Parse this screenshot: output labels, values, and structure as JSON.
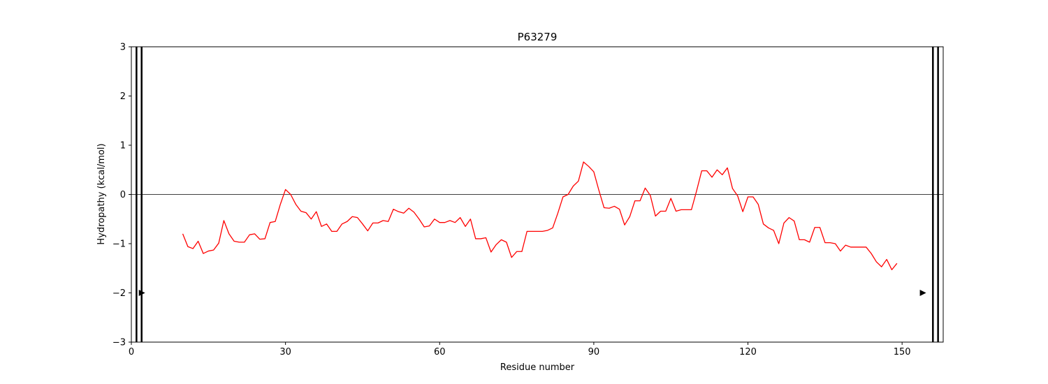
{
  "chart_data": {
    "type": "line",
    "title": "P63279",
    "xlabel": "Residue number",
    "ylabel": "Hydropathy (kcal/mol)",
    "xlim": [
      0,
      158
    ],
    "ylim": [
      -3,
      3
    ],
    "xticks": [
      0,
      30,
      60,
      90,
      120,
      150
    ],
    "yticks": [
      -3,
      -2,
      -1,
      0,
      1,
      2,
      3
    ],
    "xtick_labels": [
      "0",
      "30",
      "60",
      "90",
      "120",
      "150"
    ],
    "ytick_labels": [
      "−3",
      "−2",
      "−1",
      "0",
      "1",
      "2",
      "3"
    ],
    "grid": false,
    "legend": "none",
    "baseline_y": 0,
    "series": [
      {
        "color": "#ff0000",
        "x": [
          10,
          11,
          12,
          13,
          14,
          15,
          16,
          17,
          18,
          19,
          20,
          21,
          22,
          23,
          24,
          25,
          26,
          27,
          28,
          29,
          30,
          31,
          32,
          33,
          34,
          35,
          36,
          37,
          38,
          39,
          40,
          41,
          42,
          43,
          44,
          45,
          46,
          47,
          48,
          49,
          50,
          51,
          52,
          53,
          54,
          55,
          56,
          57,
          58,
          59,
          60,
          61,
          62,
          63,
          64,
          65,
          66,
          67,
          68,
          69,
          70,
          71,
          72,
          73,
          74,
          75,
          76,
          77,
          78,
          79,
          80,
          81,
          82,
          83,
          84,
          85,
          86,
          87,
          88,
          89,
          90,
          91,
          92,
          93,
          94,
          95,
          96,
          97,
          98,
          99,
          100,
          101,
          102,
          103,
          104,
          105,
          106,
          107,
          108,
          109,
          110,
          111,
          112,
          113,
          114,
          115,
          116,
          117,
          118,
          119,
          120,
          121,
          122,
          123,
          124,
          125,
          126,
          127,
          128,
          129,
          130,
          131,
          132,
          133,
          134,
          135,
          136,
          137,
          138,
          139,
          140,
          141,
          142,
          143,
          144,
          145,
          146,
          147,
          148,
          149
        ],
        "y": [
          -0.8,
          -1.06,
          -1.1,
          -0.95,
          -1.2,
          -1.15,
          -1.13,
          -0.99,
          -0.53,
          -0.8,
          -0.95,
          -0.97,
          -0.97,
          -0.82,
          -0.8,
          -0.91,
          -0.9,
          -0.57,
          -0.55,
          -0.2,
          0.1,
          0.0,
          -0.2,
          -0.34,
          -0.37,
          -0.5,
          -0.35,
          -0.65,
          -0.6,
          -0.75,
          -0.75,
          -0.6,
          -0.55,
          -0.45,
          -0.47,
          -0.6,
          -0.74,
          -0.58,
          -0.58,
          -0.53,
          -0.55,
          -0.3,
          -0.35,
          -0.38,
          -0.28,
          -0.36,
          -0.5,
          -0.66,
          -0.64,
          -0.5,
          -0.57,
          -0.57,
          -0.53,
          -0.57,
          -0.47,
          -0.65,
          -0.5,
          -0.9,
          -0.9,
          -0.88,
          -1.17,
          -1.02,
          -0.92,
          -0.97,
          -1.28,
          -1.16,
          -1.16,
          -0.75,
          -0.75,
          -0.75,
          -0.75,
          -0.73,
          -0.68,
          -0.38,
          -0.05,
          0.0,
          0.17,
          0.27,
          0.66,
          0.57,
          0.46,
          0.08,
          -0.27,
          -0.28,
          -0.24,
          -0.3,
          -0.62,
          -0.45,
          -0.13,
          -0.13,
          0.13,
          -0.02,
          -0.44,
          -0.34,
          -0.34,
          -0.08,
          -0.34,
          -0.31,
          -0.31,
          -0.31,
          0.07,
          0.48,
          0.48,
          0.35,
          0.5,
          0.4,
          0.54,
          0.12,
          -0.03,
          -0.35,
          -0.05,
          -0.05,
          -0.2,
          -0.6,
          -0.68,
          -0.73,
          -1.0,
          -0.58,
          -0.47,
          -0.54,
          -0.92,
          -0.92,
          -0.97,
          -0.67,
          -0.67,
          -0.98,
          -0.98,
          -1.0,
          -1.15,
          -1.03,
          -1.07,
          -1.07,
          -1.07,
          -1.07,
          -1.2,
          -1.37,
          -1.47,
          -1.32,
          -1.53,
          -1.4
        ]
      }
    ],
    "vertical_lines": [
      1,
      2,
      156,
      157
    ],
    "markers": [
      {
        "x": 2,
        "y": -2,
        "direction": "right"
      },
      {
        "x": 154,
        "y": -2,
        "direction": "right"
      }
    ]
  }
}
